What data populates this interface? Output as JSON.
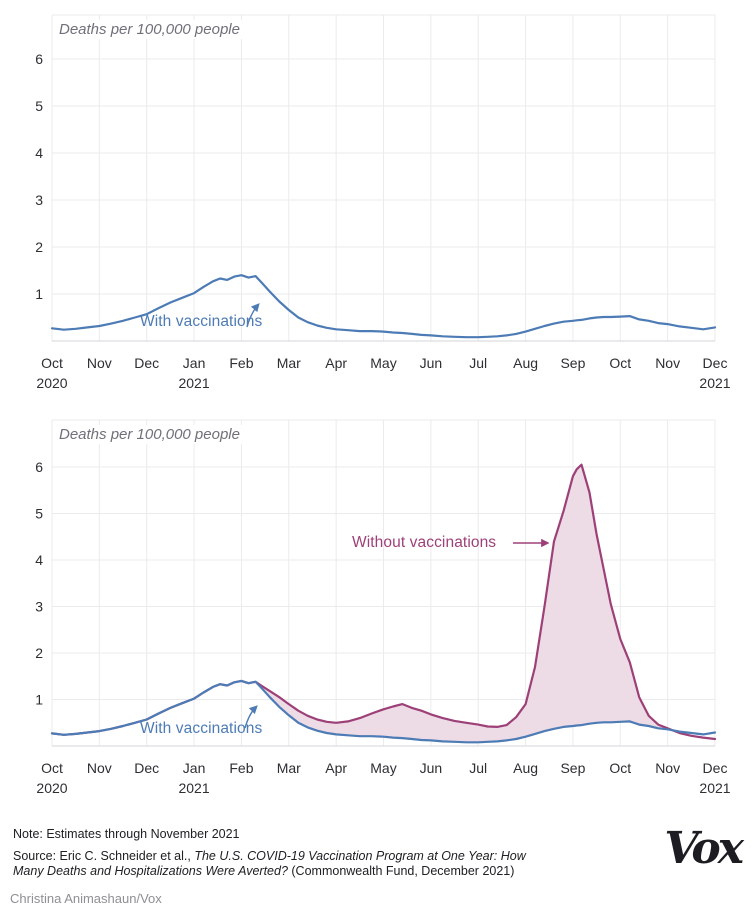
{
  "colors": {
    "with_vaccinations_blue": "#4d7bb5",
    "without_vaccinations_purple": "#9d4078",
    "averted_area_pink": "#eddbe6",
    "grid": "#ebebee",
    "axis": "#d4d4da"
  },
  "chart_data": [
    {
      "type": "line",
      "y_axis_title": "Deaths per 100,000 people",
      "x_tick_labels": [
        {
          "label": "Oct",
          "year": "2020"
        },
        {
          "label": "Nov"
        },
        {
          "label": "Dec"
        },
        {
          "label": "Jan",
          "year": "2021"
        },
        {
          "label": "Feb"
        },
        {
          "label": "Mar"
        },
        {
          "label": "Apr"
        },
        {
          "label": "May"
        },
        {
          "label": "Jun"
        },
        {
          "label": "Jul"
        },
        {
          "label": "Aug"
        },
        {
          "label": "Sep"
        },
        {
          "label": "Oct"
        },
        {
          "label": "Nov"
        },
        {
          "label": "Dec",
          "year": "2021"
        }
      ],
      "y_ticks": [
        1,
        2,
        3,
        4,
        5,
        6
      ],
      "ylim": [
        0,
        6.9
      ],
      "x_unit": "months since Oct 1 2020",
      "x_months": [
        0,
        0.25,
        0.5,
        0.75,
        1,
        1.25,
        1.5,
        1.75,
        2,
        2.25,
        2.5,
        2.75,
        3,
        3.2,
        3.4,
        3.55,
        3.7,
        3.85,
        4,
        4.15,
        4.3,
        4.45,
        4.6,
        4.8,
        5,
        5.2,
        5.4,
        5.6,
        5.8,
        6,
        6.25,
        6.5,
        6.75,
        7,
        7.2,
        7.4,
        7.6,
        7.8,
        8,
        8.25,
        8.5,
        8.75,
        9,
        9.2,
        9.4,
        9.6,
        9.8,
        10,
        10.2,
        10.4,
        10.6,
        10.8,
        11,
        11.08,
        11.18,
        11.35,
        11.5,
        11.65,
        11.8,
        12,
        12.2,
        12.4,
        12.6,
        12.8,
        13,
        13.25,
        13.5,
        13.75,
        14
      ],
      "series": [
        {
          "name": "With vaccinations",
          "color": "#4d7bb5",
          "values": [
            0.27,
            0.24,
            0.26,
            0.29,
            0.32,
            0.37,
            0.43,
            0.5,
            0.57,
            0.7,
            0.82,
            0.92,
            1.02,
            1.15,
            1.27,
            1.33,
            1.3,
            1.37,
            1.4,
            1.35,
            1.38,
            1.22,
            1.05,
            0.84,
            0.66,
            0.5,
            0.4,
            0.33,
            0.28,
            0.25,
            0.23,
            0.21,
            0.21,
            0.2,
            0.18,
            0.17,
            0.15,
            0.13,
            0.12,
            0.1,
            0.09,
            0.08,
            0.08,
            0.09,
            0.1,
            0.12,
            0.15,
            0.2,
            0.26,
            0.32,
            0.37,
            0.41,
            0.43,
            0.44,
            0.45,
            0.48,
            0.5,
            0.51,
            0.51,
            0.52,
            0.53,
            0.46,
            0.43,
            0.38,
            0.36,
            0.31,
            0.28,
            0.25,
            0.29
          ]
        }
      ],
      "annotations": [
        {
          "text": "With vaccinations"
        }
      ]
    },
    {
      "type": "line",
      "y_axis_title": "Deaths per 100,000 people",
      "x_tick_labels": [
        {
          "label": "Oct",
          "year": "2020"
        },
        {
          "label": "Nov"
        },
        {
          "label": "Dec"
        },
        {
          "label": "Jan",
          "year": "2021"
        },
        {
          "label": "Feb"
        },
        {
          "label": "Mar"
        },
        {
          "label": "Apr"
        },
        {
          "label": "May"
        },
        {
          "label": "Jun"
        },
        {
          "label": "Jul"
        },
        {
          "label": "Aug"
        },
        {
          "label": "Sep"
        },
        {
          "label": "Oct"
        },
        {
          "label": "Nov"
        },
        {
          "label": "Dec",
          "year": "2021"
        }
      ],
      "y_ticks": [
        1,
        2,
        3,
        4,
        5,
        6
      ],
      "ylim": [
        0,
        7.0
      ],
      "x_unit": "months since Oct 1 2020",
      "x_months": [
        0,
        0.25,
        0.5,
        0.75,
        1,
        1.25,
        1.5,
        1.75,
        2,
        2.25,
        2.5,
        2.75,
        3,
        3.2,
        3.4,
        3.55,
        3.7,
        3.85,
        4,
        4.15,
        4.3,
        4.45,
        4.6,
        4.8,
        5,
        5.2,
        5.4,
        5.6,
        5.8,
        6,
        6.25,
        6.5,
        6.75,
        7,
        7.2,
        7.4,
        7.6,
        7.8,
        8,
        8.25,
        8.5,
        8.75,
        9,
        9.2,
        9.4,
        9.6,
        9.8,
        10,
        10.2,
        10.4,
        10.6,
        10.8,
        11,
        11.08,
        11.18,
        11.35,
        11.5,
        11.65,
        11.8,
        12,
        12.2,
        12.4,
        12.6,
        12.8,
        13,
        13.25,
        13.5,
        13.75,
        14
      ],
      "series": [
        {
          "name": "With vaccinations",
          "color": "#4d7bb5",
          "values": [
            0.27,
            0.24,
            0.26,
            0.29,
            0.32,
            0.37,
            0.43,
            0.5,
            0.57,
            0.7,
            0.82,
            0.92,
            1.02,
            1.15,
            1.27,
            1.33,
            1.3,
            1.37,
            1.4,
            1.35,
            1.38,
            1.22,
            1.05,
            0.84,
            0.66,
            0.5,
            0.4,
            0.33,
            0.28,
            0.25,
            0.23,
            0.21,
            0.21,
            0.2,
            0.18,
            0.17,
            0.15,
            0.13,
            0.12,
            0.1,
            0.09,
            0.08,
            0.08,
            0.09,
            0.1,
            0.12,
            0.15,
            0.2,
            0.26,
            0.32,
            0.37,
            0.41,
            0.43,
            0.44,
            0.45,
            0.48,
            0.5,
            0.51,
            0.51,
            0.52,
            0.53,
            0.46,
            0.43,
            0.38,
            0.36,
            0.31,
            0.28,
            0.25,
            0.29
          ]
        },
        {
          "name": "Without vaccinations",
          "color": "#9d4078",
          "values": [
            0.27,
            0.24,
            0.26,
            0.29,
            0.32,
            0.37,
            0.43,
            0.5,
            0.57,
            0.7,
            0.82,
            0.92,
            1.02,
            1.15,
            1.27,
            1.33,
            1.3,
            1.37,
            1.4,
            1.35,
            1.38,
            1.28,
            1.18,
            1.05,
            0.9,
            0.76,
            0.65,
            0.57,
            0.52,
            0.5,
            0.53,
            0.6,
            0.7,
            0.79,
            0.85,
            0.9,
            0.82,
            0.76,
            0.68,
            0.6,
            0.54,
            0.5,
            0.46,
            0.42,
            0.41,
            0.45,
            0.62,
            0.9,
            1.7,
            3.0,
            4.4,
            5.05,
            5.8,
            5.95,
            6.05,
            5.45,
            4.55,
            3.8,
            3.05,
            2.3,
            1.8,
            1.05,
            0.65,
            0.46,
            0.38,
            0.28,
            0.22,
            0.18,
            0.15
          ]
        }
      ],
      "fill_between": {
        "color": "#eddbe6",
        "meaning": "deaths averted by vaccination"
      },
      "annotations": [
        {
          "text": "With vaccinations"
        },
        {
          "text": "Without vaccinations"
        }
      ]
    }
  ],
  "footer": {
    "note": "Note: Estimates through November 2021",
    "source_lines": [
      [
        {
          "text": "Source: Eric C. Schneider et al., ",
          "italic": false
        },
        {
          "text": "The U.S. COVID-19 Vaccination Program at One Year: How",
          "italic": true
        }
      ],
      [
        {
          "text": "Many Deaths and Hospitalizations Were Averted?",
          "italic": true
        },
        {
          "text": " (Commonwealth Fund, December 2021)",
          "italic": false
        }
      ]
    ],
    "credit": "Christina Animashaun/Vox",
    "logo_text": "Vox"
  }
}
